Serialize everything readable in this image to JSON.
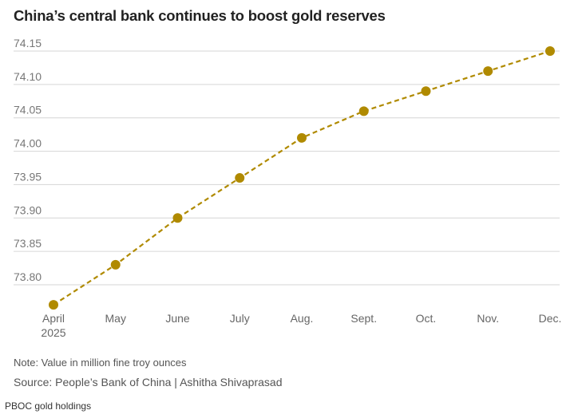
{
  "chart_data": {
    "type": "line",
    "title": "China’s central bank continues to boost gold reserves",
    "categories": [
      "April\n2025",
      "May",
      "June",
      "July",
      "Aug.",
      "Sept.",
      "Oct.",
      "Nov.",
      "Dec."
    ],
    "series": [
      {
        "name": "PBOC gold holdings",
        "values": [
          73.77,
          73.83,
          73.9,
          73.96,
          74.02,
          74.06,
          74.09,
          74.12,
          74.15
        ],
        "color": "#b08a00"
      }
    ],
    "yticks": [
      "73.80",
      "73.85",
      "73.90",
      "73.95",
      "74.00",
      "74.05",
      "74.10",
      "74.15"
    ],
    "ylim": [
      73.75,
      74.17
    ],
    "xlabel": "",
    "ylabel": "",
    "grid": true,
    "line_style": "dashed",
    "note": "Note: Value in million fine troy ounces",
    "source": "Source: People’s Bank of China | Ashitha Shivaprasad",
    "caption": "PBOC gold holdings"
  },
  "colors": {
    "line": "#b08a00",
    "grid": "#d6d6d6",
    "text": "#555555"
  }
}
